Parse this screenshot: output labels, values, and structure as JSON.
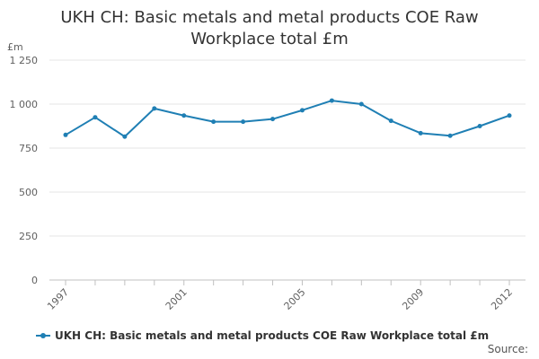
{
  "title_line1": "UKH CH: Basic metals and metal products COE Raw",
  "title_line2": "Workplace total £m",
  "source_label": "Source:",
  "colors": {
    "series": "#1f7fb4",
    "grid": "#e6e6e6",
    "axis_text": "#606060"
  },
  "chart_data": {
    "type": "line",
    "title": "UKH CH: Basic metals and metal products COE Raw Workplace total £m",
    "ylabel": "£m",
    "xlabel": "",
    "ylim": [
      0,
      1250
    ],
    "yticks": [
      0,
      250,
      500,
      750,
      1000,
      1250
    ],
    "ytick_labels": [
      "0",
      "250",
      "500",
      "750",
      "1 000",
      "1 250"
    ],
    "xtick_labels": [
      "1997",
      "2001",
      "2005",
      "2009",
      "2012"
    ],
    "grid": true,
    "legend_position": "bottom",
    "series": [
      {
        "name": "UKH CH: Basic metals and metal products COE Raw Workplace total £m",
        "x": [
          1997,
          1998,
          1999,
          2000,
          2001,
          2002,
          2003,
          2004,
          2005,
          2006,
          2007,
          2008,
          2009,
          2010,
          2011,
          2012
        ],
        "values": [
          825,
          925,
          815,
          975,
          935,
          900,
          900,
          915,
          965,
          1020,
          1000,
          905,
          835,
          820,
          875,
          935
        ]
      }
    ]
  }
}
